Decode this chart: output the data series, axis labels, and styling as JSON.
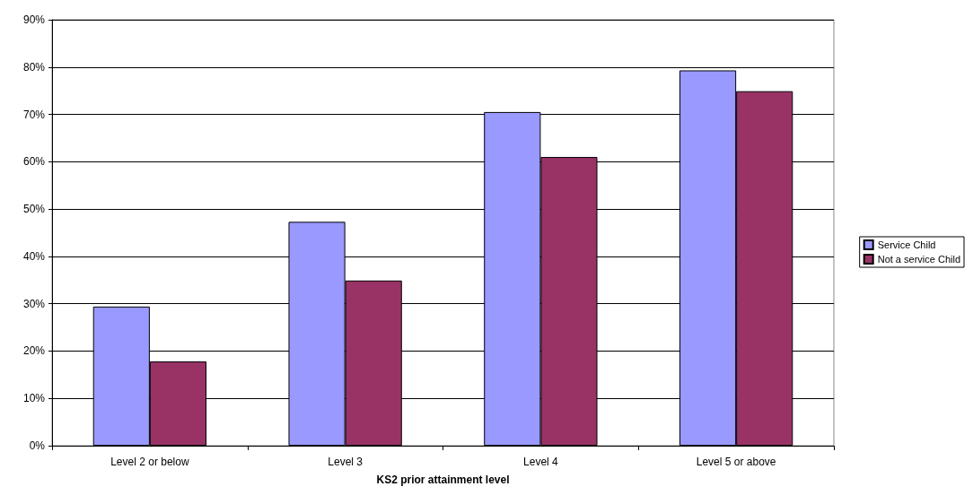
{
  "chart_data": {
    "type": "bar",
    "xlabel": "KS2 prior attainment level",
    "categories": [
      "Level 2 or below",
      "Level 3",
      "Level 4",
      "Level 5 or above"
    ],
    "series": [
      {
        "name": "Service Child",
        "color": "#9999ff",
        "values": [
          29.4,
          47.3,
          70.5,
          79.3
        ]
      },
      {
        "name": "Not a service Child",
        "color": "#993366",
        "values": [
          17.8,
          34.9,
          61.0,
          74.9
        ]
      }
    ],
    "ylim": [
      0,
      90
    ],
    "yticks": [
      {
        "value": 0,
        "label": "0%"
      },
      {
        "value": 10,
        "label": "10%"
      },
      {
        "value": 20,
        "label": "20%"
      },
      {
        "value": 30,
        "label": "30%"
      },
      {
        "value": 40,
        "label": "40%"
      },
      {
        "value": 50,
        "label": "50%"
      },
      {
        "value": 60,
        "label": "60%"
      },
      {
        "value": 70,
        "label": "70%"
      },
      {
        "value": 80,
        "label": "80%"
      },
      {
        "value": 90,
        "label": "90%"
      }
    ],
    "grid": "y",
    "legend": "right"
  }
}
